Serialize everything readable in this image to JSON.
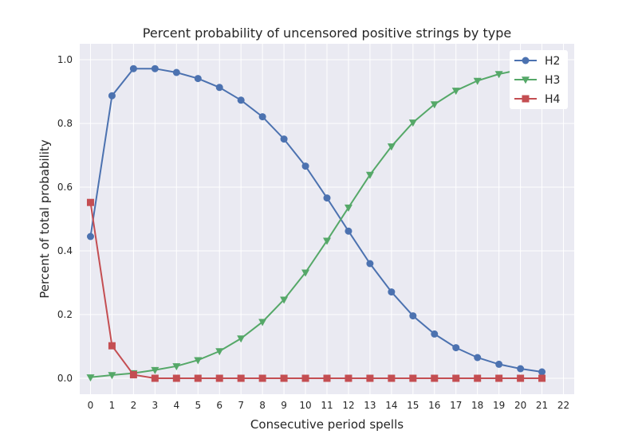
{
  "chart_data": {
    "type": "line",
    "title": "Percent probability of uncensored positive strings by type",
    "xlabel": "Consecutive period spells",
    "ylabel": "Percent of total probability",
    "xlim": [
      -0.5,
      22.5
    ],
    "ylim": [
      -0.05,
      1.05
    ],
    "x_ticks": [
      "0",
      "1",
      "2",
      "3",
      "4",
      "5",
      "6",
      "7",
      "8",
      "9",
      "10",
      "11",
      "12",
      "13",
      "14",
      "15",
      "16",
      "17",
      "18",
      "19",
      "20",
      "21",
      "22"
    ],
    "y_ticks": [
      "0.0",
      "0.2",
      "0.4",
      "0.6",
      "0.8",
      "1.0"
    ],
    "grid": true,
    "legend_position": "top-right",
    "x": [
      0,
      1,
      2,
      3,
      4,
      5,
      6,
      7,
      8,
      9,
      10,
      11,
      12,
      13,
      14,
      15,
      16,
      17,
      18,
      19,
      20,
      21
    ],
    "series": [
      {
        "name": "H2",
        "color": "#4c72b0",
        "marker": "circle",
        "values": [
          0.445,
          0.887,
          0.972,
          0.972,
          0.96,
          0.941,
          0.913,
          0.873,
          0.821,
          0.751,
          0.666,
          0.566,
          0.462,
          0.36,
          0.271,
          0.196,
          0.139,
          0.096,
          0.065,
          0.044,
          0.03,
          0.02
        ]
      },
      {
        "name": "H3",
        "color": "#55a868",
        "marker": "triangle-down",
        "values": [
          0.003,
          0.01,
          0.016,
          0.026,
          0.038,
          0.057,
          0.085,
          0.125,
          0.177,
          0.247,
          0.332,
          0.432,
          0.536,
          0.639,
          0.728,
          0.803,
          0.86,
          0.903,
          0.934,
          0.955,
          0.969,
          0.979
        ]
      },
      {
        "name": "H4",
        "color": "#c44e52",
        "marker": "square",
        "values": [
          0.552,
          0.102,
          0.011,
          0.0,
          0.0,
          0.0,
          0.0,
          0.0,
          0.0,
          0.0,
          0.0,
          0.0,
          0.0,
          0.0,
          0.0,
          0.0,
          0.0,
          0.0,
          0.0,
          0.0,
          0.0,
          0.0
        ]
      }
    ]
  }
}
